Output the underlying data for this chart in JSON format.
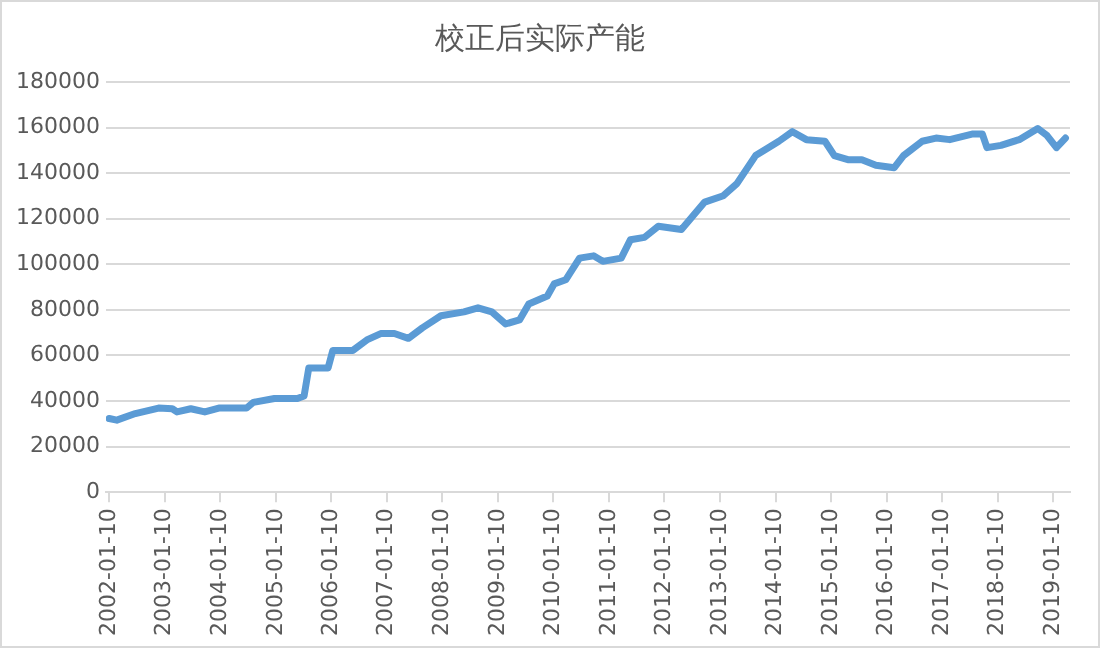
{
  "chart_data": {
    "type": "line",
    "title": "校正后实际产能",
    "x": [
      "2002-01-10",
      "2002-03-01",
      "2002-07-01",
      "2002-12-01",
      "2003-03-01",
      "2003-04-01",
      "2003-07-01",
      "2003-10-01",
      "2004-01-01",
      "2004-07-01",
      "2004-08-15",
      "2005-01-01",
      "2005-06-01",
      "2005-07-15",
      "2005-08-15",
      "2005-12-20",
      "2006-01-20",
      "2006-06-01",
      "2006-09-01",
      "2006-12-01",
      "2007-03-01",
      "2007-06-01",
      "2007-09-01",
      "2008-01-01",
      "2008-06-01",
      "2008-09-01",
      "2008-12-01",
      "2009-03-01",
      "2009-06-01",
      "2009-08-01",
      "2009-12-01",
      "2010-01-15",
      "2010-04-01",
      "2010-07-01",
      "2010-10-01",
      "2010-12-01",
      "2011-04-01",
      "2011-06-01",
      "2011-09-01",
      "2011-12-01",
      "2012-05-01",
      "2012-10-01",
      "2013-02-01",
      "2013-05-01",
      "2013-09-01",
      "2014-02-01",
      "2014-05-01",
      "2014-08-01",
      "2014-12-01",
      "2015-02-01",
      "2015-05-01",
      "2015-08-01",
      "2015-11-01",
      "2016-03-01",
      "2016-05-01",
      "2016-09-01",
      "2016-12-01",
      "2017-03-01",
      "2017-08-01",
      "2017-10-01",
      "2017-11-01",
      "2018-02-01",
      "2018-06-01",
      "2018-10-01",
      "2018-12-01",
      "2019-02-01",
      "2019-04-01"
    ],
    "series": [
      {
        "color": "#5b9bd5",
        "values": [
          32300,
          31600,
          34500,
          36900,
          36600,
          35200,
          36600,
          35200,
          36900,
          36900,
          39400,
          41100,
          41100,
          42200,
          54500,
          54500,
          62200,
          62200,
          66800,
          69600,
          69600,
          67500,
          72100,
          77400,
          79100,
          80900,
          79100,
          73800,
          75600,
          82600,
          86100,
          91400,
          93200,
          102700,
          103700,
          101300,
          102700,
          110800,
          111800,
          116700,
          115300,
          127300,
          130100,
          135400,
          147700,
          154000,
          158200,
          154700,
          154000,
          147700,
          145900,
          145900,
          143500,
          142400,
          147700,
          154000,
          155400,
          154700,
          157200,
          157200,
          151200,
          152200,
          154700,
          159600,
          156500,
          151200,
          155400
        ]
      }
    ],
    "xlim": [
      "2001-12-20",
      "2019-05-01"
    ],
    "xticks": [
      "2002-01-10",
      "2003-01-10",
      "2004-01-10",
      "2005-01-10",
      "2006-01-10",
      "2007-01-10",
      "2008-01-10",
      "2009-01-10",
      "2010-01-10",
      "2011-01-10",
      "2012-01-10",
      "2013-01-10",
      "2014-01-10",
      "2015-01-10",
      "2016-01-10",
      "2017-01-10",
      "2018-01-10",
      "2019-01-10"
    ],
    "ylim": [
      0,
      180000
    ],
    "yticks": [
      0,
      20000,
      40000,
      60000,
      80000,
      100000,
      120000,
      140000,
      160000,
      180000
    ],
    "grid": "y",
    "legend": false,
    "marker": "none",
    "line_style": "solid"
  }
}
